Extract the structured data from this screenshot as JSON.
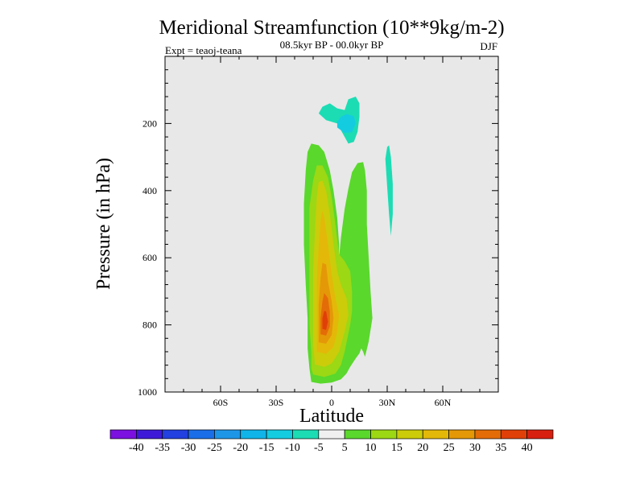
{
  "chart_data": {
    "type": "contour",
    "title": "Meridional Streamfunction (10**9kg/m-2)",
    "subtitle": "08.5kyr BP - 00.0kyr BP",
    "left_label": "Expt = teaoj-teana",
    "right_label": "DJF",
    "xlabel": "Latitude",
    "ylabel": "Pressure (in hPa)",
    "xlim": [
      -90,
      90
    ],
    "ylim": [
      0,
      1000
    ],
    "y_inverted": true,
    "x_ticks": [
      {
        "value": -60,
        "label": "60S"
      },
      {
        "value": -30,
        "label": "30S"
      },
      {
        "value": 0,
        "label": "0"
      },
      {
        "value": 30,
        "label": "30N"
      },
      {
        "value": 60,
        "label": "60N"
      }
    ],
    "y_ticks": [
      {
        "value": 200,
        "label": "200"
      },
      {
        "value": 400,
        "label": "400"
      },
      {
        "value": 600,
        "label": "600"
      },
      {
        "value": 800,
        "label": "800"
      },
      {
        "value": 1000,
        "label": "1000"
      }
    ],
    "background_color": "#e8e8e8",
    "colorbar": {
      "labels": [
        "-40",
        "-35",
        "-30",
        "-25",
        "-20",
        "-15",
        "-10",
        "-5",
        "5",
        "10",
        "15",
        "20",
        "25",
        "30",
        "35",
        "40"
      ],
      "colors": [
        "#7b10e0",
        "#3e1ad8",
        "#2340e0",
        "#1a6ee8",
        "#1e96e8",
        "#10b4e8",
        "#14cce0",
        "#1cdcb4",
        "#f0f0f0",
        "#5ad82c",
        "#9cd814",
        "#cccc0a",
        "#e4b808",
        "#e49808",
        "#e46c08",
        "#e04008",
        "#d82010"
      ]
    },
    "contours": [
      {
        "level": "5 to 10",
        "color": "#5ad82c",
        "points": [
          [
            -11,
            970
          ],
          [
            -6,
            975
          ],
          [
            0,
            972
          ],
          [
            5,
            962
          ],
          [
            8,
            945
          ],
          [
            10,
            925
          ],
          [
            13,
            900
          ],
          [
            15,
            885
          ],
          [
            16,
            870
          ],
          [
            17,
            880
          ],
          [
            18,
            895
          ],
          [
            20,
            850
          ],
          [
            22,
            780
          ],
          [
            21,
            700
          ],
          [
            20,
            600
          ],
          [
            19,
            500
          ],
          [
            19,
            400
          ],
          [
            18,
            340
          ],
          [
            17,
            315
          ],
          [
            14,
            318
          ],
          [
            11,
            345
          ],
          [
            9,
            395
          ],
          [
            7,
            455
          ],
          [
            5,
            540
          ],
          [
            4,
            600
          ],
          [
            4,
            560
          ],
          [
            3,
            480
          ],
          [
            1,
            400
          ],
          [
            -1,
            340
          ],
          [
            -4,
            285
          ],
          [
            -7,
            265
          ],
          [
            -11,
            260
          ],
          [
            -13,
            285
          ],
          [
            -14,
            340
          ],
          [
            -15,
            440
          ],
          [
            -15,
            560
          ],
          [
            -14,
            680
          ],
          [
            -13,
            780
          ],
          [
            -13,
            870
          ],
          [
            -12,
            930
          ]
        ]
      },
      {
        "level": "10 to 15",
        "color": "#9cd814",
        "points": [
          [
            -10,
            948
          ],
          [
            -4,
            955
          ],
          [
            2,
            945
          ],
          [
            5,
            920
          ],
          [
            7,
            880
          ],
          [
            10,
            800
          ],
          [
            11,
            760
          ],
          [
            11,
            700
          ],
          [
            10,
            640
          ],
          [
            7,
            610
          ],
          [
            4,
            590
          ],
          [
            2,
            500
          ],
          [
            0,
            420
          ],
          [
            -2,
            360
          ],
          [
            -5,
            325
          ],
          [
            -8,
            325
          ],
          [
            -10,
            370
          ],
          [
            -12,
            450
          ],
          [
            -12,
            580
          ],
          [
            -12,
            700
          ],
          [
            -12,
            800
          ],
          [
            -11,
            880
          ],
          [
            -11,
            930
          ]
        ]
      },
      {
        "level": "15 to 20",
        "color": "#cccc0a",
        "points": [
          [
            -9,
            918
          ],
          [
            -4,
            925
          ],
          [
            0,
            915
          ],
          [
            4,
            880
          ],
          [
            7,
            820
          ],
          [
            9,
            770
          ],
          [
            8,
            720
          ],
          [
            5,
            680
          ],
          [
            3,
            640
          ],
          [
            1,
            560
          ],
          [
            -1,
            470
          ],
          [
            -3,
            400
          ],
          [
            -5,
            370
          ],
          [
            -7,
            375
          ],
          [
            -8,
            420
          ],
          [
            -9,
            520
          ],
          [
            -10,
            640
          ],
          [
            -10,
            760
          ],
          [
            -10,
            860
          ]
        ]
      },
      {
        "level": "20 to 25",
        "color": "#e4b808",
        "points": [
          [
            -8,
            880
          ],
          [
            -3,
            886
          ],
          [
            1,
            866
          ],
          [
            3,
            820
          ],
          [
            4,
            770
          ],
          [
            2,
            720
          ],
          [
            0,
            650
          ],
          [
            -2,
            560
          ],
          [
            -4,
            480
          ],
          [
            -5,
            460
          ],
          [
            -6,
            490
          ],
          [
            -7,
            570
          ],
          [
            -8,
            670
          ],
          [
            -8,
            790
          ]
        ]
      },
      {
        "level": "25 to 30",
        "color": "#e49808",
        "points": [
          [
            -7,
            852
          ],
          [
            -3,
            856
          ],
          [
            0,
            830
          ],
          [
            1,
            780
          ],
          [
            0,
            730
          ],
          [
            -2,
            670
          ],
          [
            -3,
            620
          ],
          [
            -5,
            615
          ],
          [
            -6,
            660
          ],
          [
            -7,
            740
          ],
          [
            -7,
            810
          ]
        ]
      },
      {
        "level": "30 to 35",
        "color": "#e46c08",
        "points": [
          [
            -6,
            828
          ],
          [
            -3,
            832
          ],
          [
            -1,
            805
          ],
          [
            -1,
            760
          ],
          [
            -2,
            720
          ],
          [
            -4,
            705
          ],
          [
            -5,
            730
          ],
          [
            -6,
            780
          ]
        ]
      },
      {
        "level": "35 to 40",
        "color": "#e04008",
        "points": [
          [
            -5,
            812
          ],
          [
            -3,
            815
          ],
          [
            -2,
            790
          ],
          [
            -3,
            760
          ],
          [
            -4,
            758
          ],
          [
            -5,
            780
          ]
        ]
      },
      {
        "level": "-10 to -5",
        "color": "#1cdcb4",
        "points": [
          [
            -3,
            190
          ],
          [
            3,
            200
          ],
          [
            6,
            230
          ],
          [
            9,
            260
          ],
          [
            12,
            255
          ],
          [
            14,
            225
          ],
          [
            15,
            180
          ],
          [
            15,
            140
          ],
          [
            13,
            120
          ],
          [
            9,
            128
          ],
          [
            7,
            160
          ],
          [
            3,
            155
          ],
          [
            -1,
            140
          ],
          [
            -5,
            150
          ],
          [
            -7,
            170
          ]
        ]
      },
      {
        "level": "-15 to -10",
        "color": "#14cce0",
        "points": [
          [
            3,
            212
          ],
          [
            7,
            228
          ],
          [
            11,
            226
          ],
          [
            13,
            200
          ],
          [
            12,
            178
          ],
          [
            8,
            172
          ],
          [
            5,
            180
          ],
          [
            3,
            195
          ]
        ]
      },
      {
        "level": "-10 to -5",
        "color": "#1cdcb4",
        "points": [
          [
            29,
            305
          ],
          [
            30,
            390
          ],
          [
            31,
            470
          ],
          [
            32,
            535
          ],
          [
            33,
            470
          ],
          [
            33,
            380
          ],
          [
            32,
            300
          ],
          [
            31,
            265
          ],
          [
            30,
            270
          ]
        ]
      }
    ]
  }
}
